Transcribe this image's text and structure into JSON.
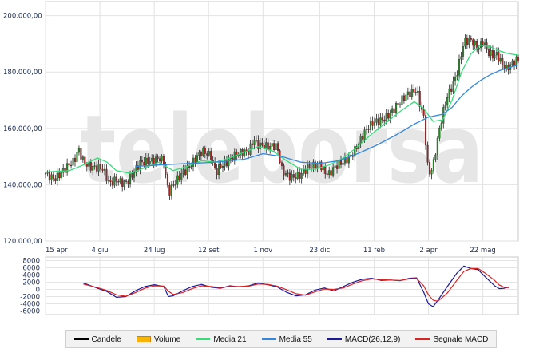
{
  "legend": [
    {
      "label": "Candele",
      "color": "#000000",
      "kind": "line"
    },
    {
      "label": "Volume",
      "color": "#f7b500",
      "kind": "box"
    },
    {
      "label": "Media 21",
      "color": "#33dd77",
      "kind": "line"
    },
    {
      "label": "Media 55",
      "color": "#3388dd",
      "kind": "line"
    },
    {
      "label": "MACD(26,12,9)",
      "color": "#1a1a99",
      "kind": "line"
    },
    {
      "label": "Segnale MACD",
      "color": "#dd2222",
      "kind": "line"
    }
  ],
  "watermark": "teleborsa",
  "chart_data": {
    "type": "line",
    "price_panel": {
      "ylim": [
        120000,
        205000
      ],
      "yticks": [
        {
          "value": 200000,
          "label": "200.000,00"
        },
        {
          "value": 180000,
          "label": "180.000,00"
        },
        {
          "value": 160000,
          "label": "160.000,00"
        },
        {
          "value": 140000,
          "label": "140.000,00"
        },
        {
          "value": 120000,
          "label": "120.000,00"
        }
      ],
      "xlim": [
        0,
        100
      ],
      "xticks": [
        {
          "x": 0,
          "label": "15 apr"
        },
        {
          "x": 11.5,
          "label": "4 giu"
        },
        {
          "x": 23,
          "label": "24 lug"
        },
        {
          "x": 34.5,
          "label": "12 set"
        },
        {
          "x": 46,
          "label": "1 nov"
        },
        {
          "x": 58,
          "label": "23 dic"
        },
        {
          "x": 69.5,
          "label": "11 feb"
        },
        {
          "x": 81,
          "label": "2 apr"
        },
        {
          "x": 92.5,
          "label": "22 mag"
        }
      ],
      "close_points": [
        [
          0,
          144000
        ],
        [
          2,
          143000
        ],
        [
          4,
          145000
        ],
        [
          6,
          147500
        ],
        [
          7,
          152500
        ],
        [
          8,
          149000
        ],
        [
          10,
          146500
        ],
        [
          12,
          145000
        ],
        [
          13.5,
          140000
        ],
        [
          15,
          142500
        ],
        [
          17,
          141000
        ],
        [
          18.5,
          143000
        ],
        [
          20,
          147000
        ],
        [
          22,
          149000
        ],
        [
          24,
          150000
        ],
        [
          25,
          148000
        ],
        [
          26,
          136000
        ],
        [
          27,
          139000
        ],
        [
          28,
          142000
        ],
        [
          29,
          145000
        ],
        [
          31,
          148000
        ],
        [
          33,
          151000
        ],
        [
          35,
          150000
        ],
        [
          36,
          145000
        ],
        [
          37,
          147500
        ],
        [
          39,
          148500
        ],
        [
          41,
          150500
        ],
        [
          43,
          152500
        ],
        [
          44,
          157000
        ],
        [
          45,
          154500
        ],
        [
          47,
          152500
        ],
        [
          49,
          153500
        ],
        [
          50,
          146000
        ],
        [
          52,
          143000
        ],
        [
          54,
          142500
        ],
        [
          56,
          146500
        ],
        [
          58,
          148500
        ],
        [
          59,
          145000
        ],
        [
          60,
          143500
        ],
        [
          61,
          145000
        ],
        [
          63,
          148000
        ],
        [
          65,
          152000
        ],
        [
          67,
          157000
        ],
        [
          69,
          161000
        ],
        [
          71,
          163500
        ],
        [
          73,
          166000
        ],
        [
          75,
          168500
        ],
        [
          77,
          172500
        ],
        [
          78.5,
          174500
        ],
        [
          79.5,
          167500
        ],
        [
          80,
          164500
        ],
        [
          81,
          143000
        ],
        [
          82,
          146000
        ],
        [
          83,
          156000
        ],
        [
          84,
          165000
        ],
        [
          85,
          172000
        ],
        [
          87,
          180000
        ],
        [
          88.5,
          190000
        ],
        [
          90,
          190500
        ],
        [
          91.5,
          188500
        ],
        [
          92.5,
          192000
        ],
        [
          93.5,
          188000
        ],
        [
          94.5,
          186000
        ],
        [
          95.5,
          185500
        ],
        [
          96.5,
          182000
        ],
        [
          97.5,
          180500
        ],
        [
          98.5,
          183000
        ],
        [
          99.5,
          185000
        ]
      ],
      "series": [
        {
          "name": "Media 21",
          "points": [
            [
              0,
              144500
            ],
            [
              5,
              145000
            ],
            [
              8,
              147000
            ],
            [
              11,
              149500
            ],
            [
              13,
              148000
            ],
            [
              15,
              145000
            ],
            [
              18,
              144000
            ],
            [
              21,
              146000
            ],
            [
              24,
              148000
            ],
            [
              27,
              145000
            ],
            [
              30,
              146500
            ],
            [
              33,
              148500
            ],
            [
              36,
              148000
            ],
            [
              39,
              149500
            ],
            [
              42,
              151500
            ],
            [
              45,
              153500
            ],
            [
              48,
              152000
            ],
            [
              51,
              148500
            ],
            [
              54,
              145500
            ],
            [
              57,
              145500
            ],
            [
              60,
              147000
            ],
            [
              63,
              149500
            ],
            [
              66,
              153500
            ],
            [
              69,
              158000
            ],
            [
              72,
              162000
            ],
            [
              75,
              166000
            ],
            [
              78,
              169500
            ],
            [
              80,
              167000
            ],
            [
              82,
              162500
            ],
            [
              84,
              163000
            ],
            [
              86,
              170000
            ],
            [
              88,
              180000
            ],
            [
              90,
              186500
            ],
            [
              92,
              189500
            ],
            [
              94,
              189000
            ],
            [
              96,
              187500
            ],
            [
              98,
              186500
            ],
            [
              100,
              186000
            ]
          ]
        },
        {
          "name": "Media 55",
          "points": [
            [
              19,
              146500
            ],
            [
              24,
              147000
            ],
            [
              30,
              147500
            ],
            [
              36,
              148000
            ],
            [
              42,
              149000
            ],
            [
              46,
              151000
            ],
            [
              50,
              150000
            ],
            [
              54,
              148000
            ],
            [
              58,
              147500
            ],
            [
              62,
              148500
            ],
            [
              66,
              151000
            ],
            [
              70,
              154000
            ],
            [
              74,
              157500
            ],
            [
              78,
              161500
            ],
            [
              81,
              164000
            ],
            [
              84,
              165000
            ],
            [
              86,
              167500
            ],
            [
              88,
              171500
            ],
            [
              90,
              174500
            ],
            [
              92,
              177000
            ],
            [
              94,
              179000
            ],
            [
              96,
              180500
            ],
            [
              98,
              181500
            ],
            [
              100,
              182500
            ]
          ]
        }
      ]
    },
    "macd_panel": {
      "ylim": [
        -7000,
        9000
      ],
      "yticks": [
        8000,
        6000,
        4000,
        2000,
        0,
        -2000,
        -4000,
        -6000
      ],
      "ytick_labels": [
        "8000",
        "6000",
        "4000",
        "2000",
        "0",
        "-2000",
        "-4000",
        "-6000"
      ],
      "series": [
        {
          "name": "MACD(26,12,9)",
          "points": [
            [
              8,
              1800
            ],
            [
              11,
              300
            ],
            [
              13,
              -600
            ],
            [
              15,
              -2200
            ],
            [
              17,
              -2000
            ],
            [
              19,
              -400
            ],
            [
              21,
              800
            ],
            [
              23,
              1300
            ],
            [
              25,
              800
            ],
            [
              26,
              -2000
            ],
            [
              27,
              -1800
            ],
            [
              29,
              -400
            ],
            [
              31,
              800
            ],
            [
              33,
              1400
            ],
            [
              35,
              600
            ],
            [
              37,
              300
            ],
            [
              39,
              1000
            ],
            [
              41,
              700
            ],
            [
              43,
              1000
            ],
            [
              45,
              1800
            ],
            [
              47,
              1300
            ],
            [
              49,
              700
            ],
            [
              51,
              -800
            ],
            [
              53,
              -1800
            ],
            [
              55,
              -1500
            ],
            [
              57,
              -200
            ],
            [
              59,
              400
            ],
            [
              61,
              -400
            ],
            [
              63,
              800
            ],
            [
              65,
              2000
            ],
            [
              67,
              2800
            ],
            [
              69,
              3100
            ],
            [
              71,
              2500
            ],
            [
              73,
              2600
            ],
            [
              75,
              2400
            ],
            [
              77,
              3100
            ],
            [
              78.5,
              3200
            ],
            [
              80,
              -800
            ],
            [
              81,
              -4000
            ],
            [
              82,
              -4800
            ],
            [
              83,
              -3000
            ],
            [
              85,
              800
            ],
            [
              87,
              4500
            ],
            [
              88.5,
              6500
            ],
            [
              90,
              5800
            ],
            [
              91.5,
              5500
            ],
            [
              93,
              3500
            ],
            [
              95,
              1000
            ],
            [
              96,
              200
            ],
            [
              97,
              300
            ],
            [
              98,
              600
            ]
          ]
        },
        {
          "name": "Segnale MACD",
          "points": [
            [
              8,
              1500
            ],
            [
              11,
              500
            ],
            [
              13,
              -300
            ],
            [
              15,
              -1500
            ],
            [
              17,
              -1900
            ],
            [
              19,
              -900
            ],
            [
              21,
              300
            ],
            [
              23,
              1000
            ],
            [
              25,
              900
            ],
            [
              26,
              -500
            ],
            [
              27,
              -1400
            ],
            [
              29,
              -900
            ],
            [
              31,
              200
            ],
            [
              33,
              1000
            ],
            [
              35,
              800
            ],
            [
              37,
              500
            ],
            [
              39,
              800
            ],
            [
              41,
              800
            ],
            [
              43,
              900
            ],
            [
              45,
              1500
            ],
            [
              47,
              1400
            ],
            [
              49,
              900
            ],
            [
              51,
              -100
            ],
            [
              53,
              -1200
            ],
            [
              55,
              -1600
            ],
            [
              57,
              -700
            ],
            [
              59,
              100
            ],
            [
              61,
              0
            ],
            [
              63,
              400
            ],
            [
              65,
              1500
            ],
            [
              67,
              2400
            ],
            [
              69,
              2900
            ],
            [
              71,
              2700
            ],
            [
              73,
              2600
            ],
            [
              75,
              2500
            ],
            [
              77,
              2900
            ],
            [
              78.5,
              3000
            ],
            [
              80,
              1000
            ],
            [
              81,
              -1500
            ],
            [
              82,
              -3000
            ],
            [
              83,
              -3300
            ],
            [
              85,
              -1000
            ],
            [
              87,
              2500
            ],
            [
              88.5,
              5000
            ],
            [
              90,
              5800
            ],
            [
              91.5,
              5800
            ],
            [
              93,
              4500
            ],
            [
              95,
              2500
            ],
            [
              96,
              1200
            ],
            [
              97,
              600
            ],
            [
              98,
              500
            ]
          ]
        }
      ]
    }
  }
}
